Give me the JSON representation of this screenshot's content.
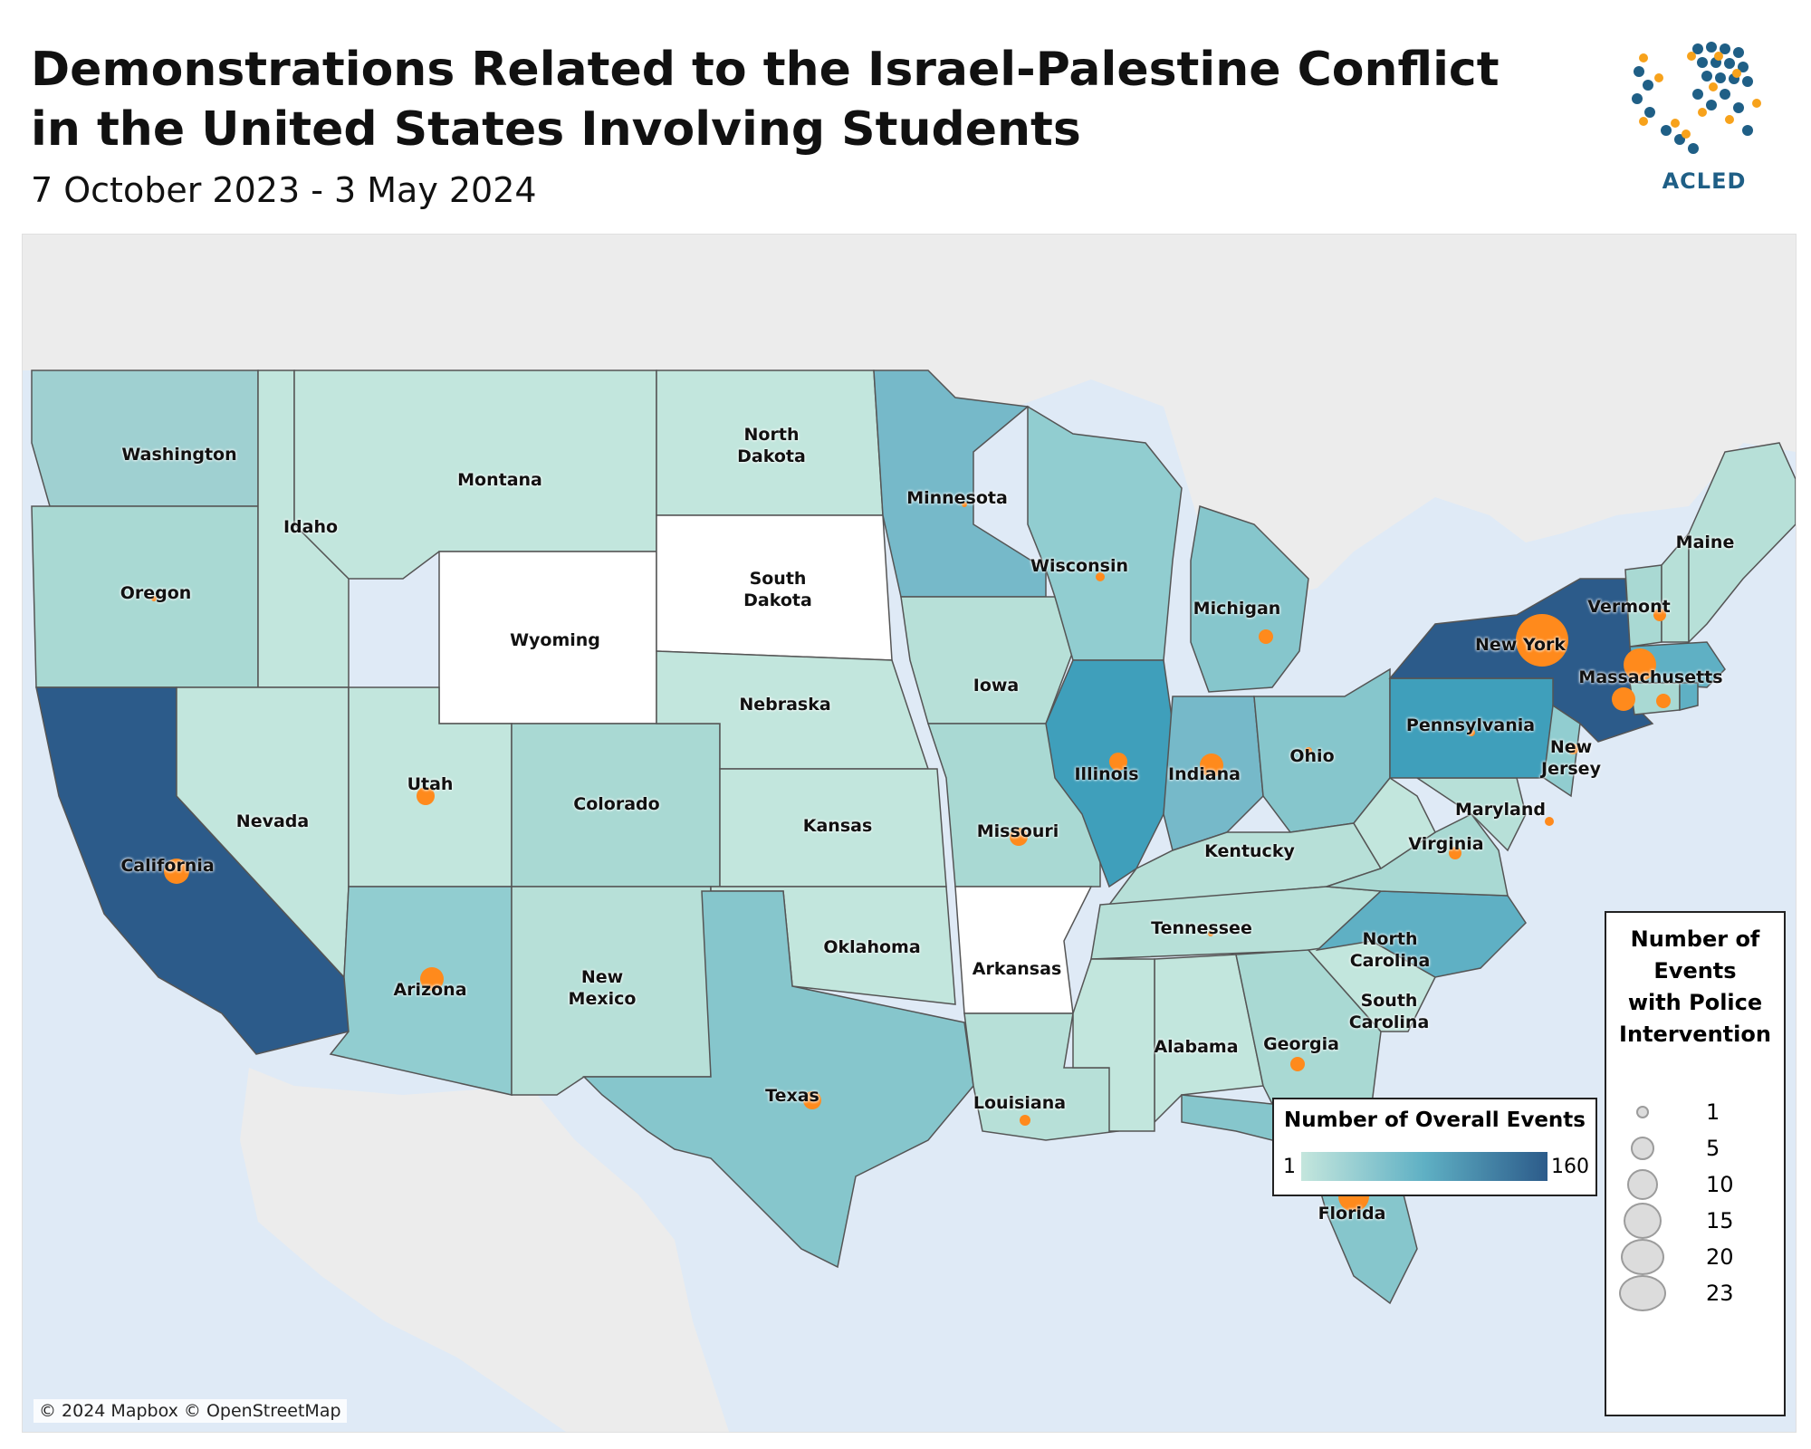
{
  "header": {
    "title_line1": "Demonstrations Related to the Israel-Palestine Conflict",
    "title_line2": "in the United States Involving Students",
    "subtitle": "7 October 2023 - 3 May 2024",
    "logo_text": "ACLED"
  },
  "map": {
    "attribution": "© 2024 Mapbox © OpenStreetMap",
    "colors": {
      "water": "#dfeaf6",
      "land_outside": "#ececec",
      "no_events": "#ffffff",
      "scale_low": "#c4e6dd",
      "scale_mid": "#5fb0c4",
      "scale_high": "#2c5b8a",
      "police_bubble": "#ff8a1c",
      "border": "#555555"
    },
    "states": [
      {
        "name": "Washington",
        "label": "Washington"
      },
      {
        "name": "Oregon",
        "label": "Oregon"
      },
      {
        "name": "California",
        "label": "California"
      },
      {
        "name": "Idaho",
        "label": "Idaho"
      },
      {
        "name": "Nevada",
        "label": "Nevada"
      },
      {
        "name": "Montana",
        "label": "Montana"
      },
      {
        "name": "Wyoming",
        "label": "Wyoming"
      },
      {
        "name": "Utah",
        "label": "Utah"
      },
      {
        "name": "Arizona",
        "label": "Arizona"
      },
      {
        "name": "Colorado",
        "label": "Colorado"
      },
      {
        "name": "New Mexico",
        "label": "New\nMexico"
      },
      {
        "name": "North Dakota",
        "label": "North\nDakota"
      },
      {
        "name": "South Dakota",
        "label": "South\nDakota"
      },
      {
        "name": "Nebraska",
        "label": "Nebraska"
      },
      {
        "name": "Kansas",
        "label": "Kansas"
      },
      {
        "name": "Oklahoma",
        "label": "Oklahoma"
      },
      {
        "name": "Texas",
        "label": "Texas"
      },
      {
        "name": "Minnesota",
        "label": "Minnesota"
      },
      {
        "name": "Iowa",
        "label": "Iowa"
      },
      {
        "name": "Missouri",
        "label": "Missouri"
      },
      {
        "name": "Arkansas",
        "label": "Arkansas"
      },
      {
        "name": "Louisiana",
        "label": "Louisiana"
      },
      {
        "name": "Wisconsin",
        "label": "Wisconsin"
      },
      {
        "name": "Illinois",
        "label": "Illinois"
      },
      {
        "name": "Michigan",
        "label": "Michigan"
      },
      {
        "name": "Indiana",
        "label": "Indiana"
      },
      {
        "name": "Ohio",
        "label": "Ohio"
      },
      {
        "name": "Kentucky",
        "label": "Kentucky"
      },
      {
        "name": "Tennessee",
        "label": "Tennessee"
      },
      {
        "name": "Alabama",
        "label": "Alabama"
      },
      {
        "name": "Georgia",
        "label": "Georgia"
      },
      {
        "name": "Florida",
        "label": "Florida"
      },
      {
        "name": "South Carolina",
        "label": "South\nCarolina"
      },
      {
        "name": "North Carolina",
        "label": "North\nCarolina"
      },
      {
        "name": "Virginia",
        "label": "Virginia"
      },
      {
        "name": "Maryland",
        "label": "Maryland"
      },
      {
        "name": "Pennsylvania",
        "label": "Pennsylvania"
      },
      {
        "name": "New Jersey",
        "label": "New\nJersey"
      },
      {
        "name": "New York",
        "label": "New York"
      },
      {
        "name": "Vermont",
        "label": "Vermont"
      },
      {
        "name": "Massachusetts",
        "label": "Massachusetts"
      },
      {
        "name": "Maine",
        "label": "Maine"
      }
    ]
  },
  "legend_events": {
    "title": "Number of Overall Events",
    "min": "1",
    "max": "160"
  },
  "legend_police": {
    "title": "Number of\nEvents\nwith Police\nIntervention",
    "values": [
      "1",
      "5",
      "10",
      "15",
      "20",
      "23"
    ]
  }
}
